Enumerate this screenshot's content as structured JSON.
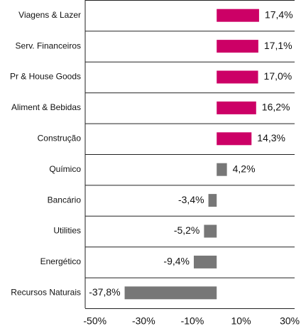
{
  "chart_data": {
    "type": "hbar",
    "categories": [
      "Viagens & Lazer",
      "Serv. Financeiros",
      "Pr & House Goods",
      "Aliment & Bebidas",
      "Construção",
      "Químico",
      "Bancário",
      "Utilities",
      "Energético",
      "Recursos Naturais"
    ],
    "values": [
      17.4,
      17.1,
      17.0,
      16.2,
      14.3,
      4.2,
      -3.4,
      -5.2,
      -9.4,
      -37.8
    ],
    "value_labels": [
      "17,4%",
      "17,1%",
      "17,0%",
      "16,2%",
      "14,3%",
      "4,2%",
      "-3,4%",
      "-5,2%",
      "-9,4%",
      "-37,8%"
    ],
    "colors": [
      "#cc0066",
      "#cc0066",
      "#cc0066",
      "#cc0066",
      "#cc0066",
      "#777777",
      "#777777",
      "#777777",
      "#777777",
      "#777777"
    ],
    "xlim": [
      -54,
      32
    ],
    "xticks": [
      {
        "value": -50,
        "label": "-50%"
      },
      {
        "value": -30,
        "label": "-30%"
      },
      {
        "value": -10,
        "label": "-10%"
      },
      {
        "value": 10,
        "label": "10%"
      },
      {
        "value": 30,
        "label": "30%"
      }
    ]
  }
}
